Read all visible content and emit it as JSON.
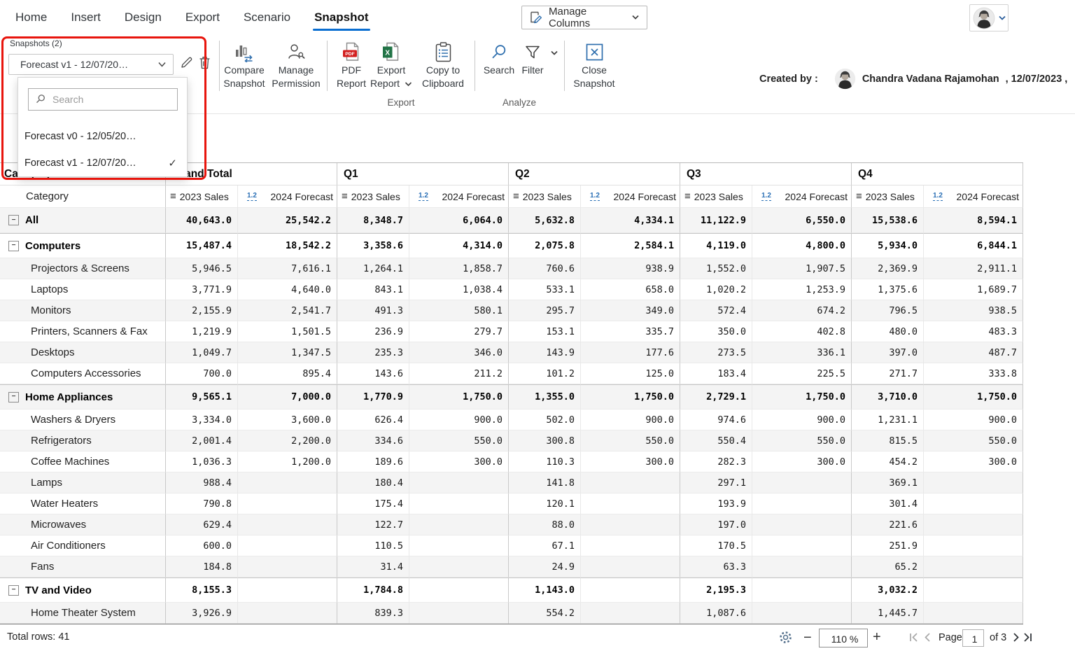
{
  "menubar": {
    "items": [
      "Home",
      "Insert",
      "Design",
      "Export",
      "Scenario",
      "Snapshot"
    ],
    "active": "Snapshot"
  },
  "top": {
    "manage_columns": "Manage Columns"
  },
  "snapshots": {
    "label": "Snapshots (2)",
    "selected": "Forecast v1 - 12/07/20…",
    "search_placeholder": "Search",
    "options": [
      {
        "label": "Forecast v0 - 12/05/20…",
        "selected": false
      },
      {
        "label": "Forecast v1 - 12/07/20…",
        "selected": true
      }
    ]
  },
  "ribbon": {
    "compare": {
      "l1": "Compare",
      "l2": "Snapshot"
    },
    "permission": {
      "l1": "Manage",
      "l2": "Permission"
    },
    "pdf": {
      "l1": "PDF",
      "l2": "Report"
    },
    "export_report": {
      "l1": "Export",
      "l2": "Report"
    },
    "copy": {
      "l1": "Copy to",
      "l2": "Clipboard"
    },
    "search": {
      "l1": "Search"
    },
    "filter": {
      "l1": "Filter"
    },
    "close": {
      "l1": "Close",
      "l2": "Snapshot"
    },
    "groups": {
      "export": "Export",
      "analyze": "Analyze"
    }
  },
  "created_by": {
    "label": "Created by :",
    "name": "Chandra Vadana Rajamohan",
    "date": ", 12/07/2023 ,"
  },
  "icons": {
    "rows": "≡",
    "numeric": "1.2",
    "check": "✓",
    "collapse": "−",
    "minus": "−",
    "plus": "+"
  },
  "colors": {
    "accent_blue": "#0a6ed1",
    "highlight_red": "#e8150d",
    "pdf_red": "#d21e1e",
    "excel_green": "#217346",
    "stripe_gray": "#f4f4f4"
  },
  "table": {
    "corner_row1": "Category",
    "corner_row2": "Category",
    "column_groups": [
      "Grand Total",
      "Q1",
      "Q2",
      "Q3",
      "Q4"
    ],
    "subcolumns": [
      {
        "label": "2023 Sales",
        "icon": "rows-icon"
      },
      {
        "label": "2024 Forecast",
        "icon": "numeric-format-icon"
      }
    ],
    "rows": [
      {
        "label": "All",
        "group": true,
        "values": [
          "40,643.0",
          "25,542.2",
          "8,348.7",
          "6,064.0",
          "5,632.8",
          "4,334.1",
          "11,122.9",
          "6,550.0",
          "15,538.6",
          "8,594.1"
        ]
      },
      {
        "label": "Computers",
        "group": true,
        "values": [
          "15,487.4",
          "18,542.2",
          "3,358.6",
          "4,314.0",
          "2,075.8",
          "2,584.1",
          "4,119.0",
          "4,800.0",
          "5,934.0",
          "6,844.1"
        ]
      },
      {
        "label": "Projectors & Screens",
        "group": false,
        "values": [
          "5,946.5",
          "7,616.1",
          "1,264.1",
          "1,858.7",
          "760.6",
          "938.9",
          "1,552.0",
          "1,907.5",
          "2,369.9",
          "2,911.1"
        ]
      },
      {
        "label": "Laptops",
        "group": false,
        "values": [
          "3,771.9",
          "4,640.0",
          "843.1",
          "1,038.4",
          "533.1",
          "658.0",
          "1,020.2",
          "1,253.9",
          "1,375.6",
          "1,689.7"
        ]
      },
      {
        "label": "Monitors",
        "group": false,
        "values": [
          "2,155.9",
          "2,541.7",
          "491.3",
          "580.1",
          "295.7",
          "349.0",
          "572.4",
          "674.2",
          "796.5",
          "938.5"
        ]
      },
      {
        "label": "Printers, Scanners & Fax",
        "group": false,
        "values": [
          "1,219.9",
          "1,501.5",
          "236.9",
          "279.7",
          "153.1",
          "335.7",
          "350.0",
          "402.8",
          "480.0",
          "483.3"
        ]
      },
      {
        "label": "Desktops",
        "group": false,
        "values": [
          "1,049.7",
          "1,347.5",
          "235.3",
          "346.0",
          "143.9",
          "177.6",
          "273.5",
          "336.1",
          "397.0",
          "487.7"
        ]
      },
      {
        "label": "Computers Accessories",
        "group": false,
        "values": [
          "700.0",
          "895.4",
          "143.6",
          "211.2",
          "101.2",
          "125.0",
          "183.4",
          "225.5",
          "271.7",
          "333.8"
        ]
      },
      {
        "label": "Home Appliances",
        "group": true,
        "values": [
          "9,565.1",
          "7,000.0",
          "1,770.9",
          "1,750.0",
          "1,355.0",
          "1,750.0",
          "2,729.1",
          "1,750.0",
          "3,710.0",
          "1,750.0"
        ]
      },
      {
        "label": "Washers & Dryers",
        "group": false,
        "values": [
          "3,334.0",
          "3,600.0",
          "626.4",
          "900.0",
          "502.0",
          "900.0",
          "974.6",
          "900.0",
          "1,231.1",
          "900.0"
        ]
      },
      {
        "label": "Refrigerators",
        "group": false,
        "values": [
          "2,001.4",
          "2,200.0",
          "334.6",
          "550.0",
          "300.8",
          "550.0",
          "550.4",
          "550.0",
          "815.5",
          "550.0"
        ]
      },
      {
        "label": "Coffee Machines",
        "group": false,
        "values": [
          "1,036.3",
          "1,200.0",
          "189.6",
          "300.0",
          "110.3",
          "300.0",
          "282.3",
          "300.0",
          "454.2",
          "300.0"
        ]
      },
      {
        "label": "Lamps",
        "group": false,
        "values": [
          "988.4",
          "",
          "180.4",
          "",
          "141.8",
          "",
          "297.1",
          "",
          "369.1",
          ""
        ]
      },
      {
        "label": "Water Heaters",
        "group": false,
        "values": [
          "790.8",
          "",
          "175.4",
          "",
          "120.1",
          "",
          "193.9",
          "",
          "301.4",
          ""
        ]
      },
      {
        "label": "Microwaves",
        "group": false,
        "values": [
          "629.4",
          "",
          "122.7",
          "",
          "88.0",
          "",
          "197.0",
          "",
          "221.6",
          ""
        ]
      },
      {
        "label": "Air Conditioners",
        "group": false,
        "values": [
          "600.0",
          "",
          "110.5",
          "",
          "67.1",
          "",
          "170.5",
          "",
          "251.9",
          ""
        ]
      },
      {
        "label": "Fans",
        "group": false,
        "values": [
          "184.8",
          "",
          "31.4",
          "",
          "24.9",
          "",
          "63.3",
          "",
          "65.2",
          ""
        ]
      },
      {
        "label": "TV and Video",
        "group": true,
        "values": [
          "8,155.3",
          "",
          "1,784.8",
          "",
          "1,143.0",
          "",
          "2,195.3",
          "",
          "3,032.2",
          ""
        ]
      },
      {
        "label": "Home Theater System",
        "group": false,
        "values": [
          "3,926.9",
          "",
          "839.3",
          "",
          "554.2",
          "",
          "1,087.6",
          "",
          "1,445.7",
          ""
        ]
      }
    ]
  },
  "footer": {
    "total_rows": "Total rows: 41",
    "zoom_value": "110 %",
    "page_label": "Page",
    "page_value": "1",
    "of_label": "of 3"
  }
}
